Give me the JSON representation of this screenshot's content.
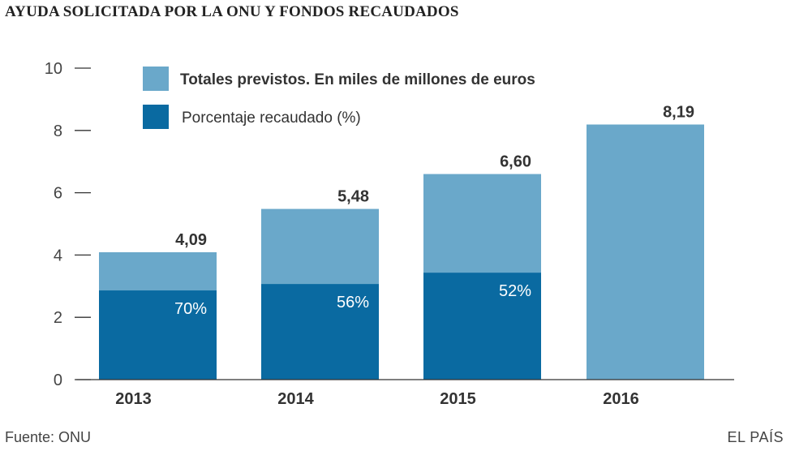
{
  "title": "AYUDA SOLICITADA POR LA ONU Y FONDOS RECAUDADOS",
  "source": "Fuente: ONU",
  "brand": "EL PAÍS",
  "colors": {
    "total": "#6aa8ca",
    "raised": "#0a6aa1",
    "axis": "#333333"
  },
  "chart_data": {
    "type": "bar",
    "title": "AYUDA SOLICITADA POR LA ONU Y FONDOS RECAUDADOS",
    "categories": [
      "2013",
      "2014",
      "2015",
      "2016"
    ],
    "series": [
      {
        "name": "Totales previstos. En miles de millones de euros",
        "values": [
          4.09,
          5.48,
          6.6,
          8.19
        ]
      },
      {
        "name": "Porcentaje recaudado (%)",
        "values": [
          70,
          56,
          52,
          null
        ]
      }
    ],
    "total_labels": [
      "4,09",
      "5,48",
      "6,60",
      "8,19"
    ],
    "pct_labels": [
      "70%",
      "56%",
      "52%",
      ""
    ],
    "yticks": [
      0,
      2,
      4,
      6,
      8,
      10
    ],
    "ylim": [
      0,
      10
    ],
    "xlabel": "",
    "ylabel": "",
    "legend": [
      {
        "label": "Totales previstos. En miles de millones de euros",
        "bold": true
      },
      {
        "label": "Porcentaje recaudado (%)",
        "bold": false
      }
    ]
  }
}
